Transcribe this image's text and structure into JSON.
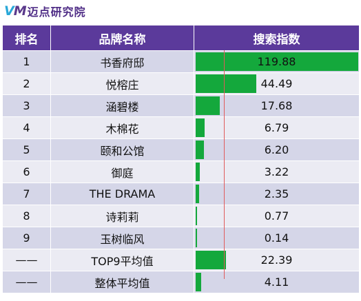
{
  "logo": {
    "mark": "VM",
    "name": "迈点研究院"
  },
  "colors": {
    "header_bg": "#5b3a9b",
    "bar": "#14a83c",
    "row_odd": "#d5d6e8",
    "row_even": "#ebebf3",
    "ref_line": "#e05a5a"
  },
  "chart_data": {
    "type": "table",
    "columns": [
      "排名",
      "品牌名称",
      "搜索指数"
    ],
    "bar_max": 119.88,
    "rows": [
      {
        "rank": "1",
        "name": "书香府邸",
        "value": 119.88,
        "label": "119.88"
      },
      {
        "rank": "2",
        "name": "悦榕庄",
        "value": 44.49,
        "label": "44.49"
      },
      {
        "rank": "3",
        "name": "涵碧楼",
        "value": 17.68,
        "label": "17.68"
      },
      {
        "rank": "4",
        "name": "木棉花",
        "value": 6.79,
        "label": "6.79"
      },
      {
        "rank": "5",
        "name": "颐和公馆",
        "value": 6.2,
        "label": "6.20"
      },
      {
        "rank": "6",
        "name": "御庭",
        "value": 3.22,
        "label": "3.22"
      },
      {
        "rank": "7",
        "name": "THE DRAMA",
        "value": 2.35,
        "label": "2.35"
      },
      {
        "rank": "8",
        "name": "诗莉莉",
        "value": 0.77,
        "label": "0.77"
      },
      {
        "rank": "9",
        "name": "玉树临风",
        "value": 0.14,
        "label": "0.14"
      },
      {
        "rank": "——",
        "name": "TOP9平均值",
        "value": 22.39,
        "label": "22.39"
      },
      {
        "rank": "——",
        "name": "整体平均值",
        "value": 4.11,
        "label": "4.11"
      }
    ]
  }
}
